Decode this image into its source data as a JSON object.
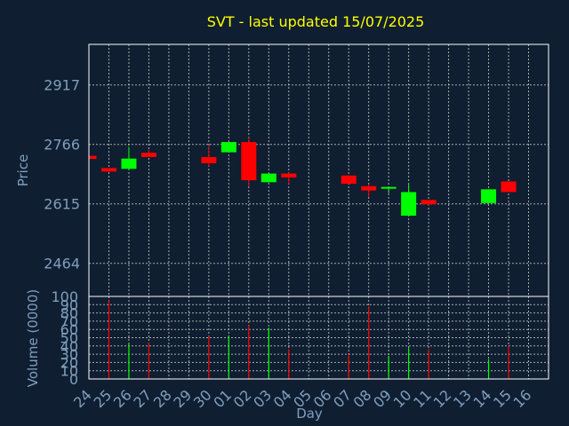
{
  "chart_data": {
    "type": "candlestick",
    "title": "SVT - last updated 15/07/2025",
    "xlabel": "Day",
    "price_panel": {
      "ylabel": "Price",
      "ylim": [
        2380,
        3020
      ],
      "yticks": [
        2464,
        2615,
        2766,
        2917
      ],
      "up_color": "#00ff00",
      "down_color": "#ff0000"
    },
    "volume_panel": {
      "ylabel": "Volume (0000)",
      "ylim": [
        0,
        100
      ],
      "yticks": [
        0,
        10,
        20,
        30,
        40,
        50,
        60,
        70,
        80,
        90,
        100
      ]
    },
    "x_ticks": [
      "24",
      "25",
      "26",
      "27",
      "28",
      "29",
      "30",
      "01",
      "02",
      "03",
      "04",
      "05",
      "06",
      "07",
      "08",
      "09",
      "10",
      "11",
      "12",
      "13",
      "14",
      "15",
      "16"
    ],
    "candles": [
      {
        "day": "24",
        "open": 2737,
        "close": 2729,
        "high": 2737,
        "low": 2729,
        "volume": 0
      },
      {
        "day": "25",
        "open": 2706,
        "close": 2697,
        "high": 2706,
        "low": 2697,
        "volume": 95
      },
      {
        "day": "26",
        "open": 2704,
        "close": 2730,
        "high": 2760,
        "low": 2700,
        "volume": 42
      },
      {
        "day": "27",
        "open": 2745,
        "close": 2734,
        "high": 2752,
        "low": 2734,
        "volume": 44
      },
      {
        "day": "30",
        "open": 2734,
        "close": 2718,
        "high": 2762,
        "low": 2710,
        "volume": 52
      },
      {
        "day": "01",
        "open": 2746,
        "close": 2772,
        "high": 2772,
        "low": 2746,
        "volume": 52
      },
      {
        "day": "02",
        "open": 2772,
        "close": 2675,
        "high": 2784,
        "low": 2660,
        "volume": 65
      },
      {
        "day": "03",
        "open": 2670,
        "close": 2692,
        "high": 2692,
        "low": 2670,
        "volume": 62
      },
      {
        "day": "04",
        "open": 2692,
        "close": 2682,
        "high": 2695,
        "low": 2665,
        "volume": 36
      },
      {
        "day": "07",
        "open": 2687,
        "close": 2666,
        "high": 2687,
        "low": 2666,
        "volume": 30
      },
      {
        "day": "08",
        "open": 2660,
        "close": 2649,
        "high": 2665,
        "low": 2632,
        "volume": 88
      },
      {
        "day": "09",
        "open": 2654,
        "close": 2658,
        "high": 2658,
        "low": 2642,
        "volume": 28
      },
      {
        "day": "10",
        "open": 2585,
        "close": 2645,
        "high": 2665,
        "low": 2585,
        "volume": 38
      },
      {
        "day": "11",
        "open": 2625,
        "close": 2614,
        "high": 2625,
        "low": 2610,
        "volume": 36
      },
      {
        "day": "14",
        "open": 2617,
        "close": 2652,
        "high": 2652,
        "low": 2617,
        "volume": 24
      },
      {
        "day": "15",
        "open": 2672,
        "close": 2645,
        "high": 2672,
        "low": 2645,
        "volume": 40
      }
    ]
  }
}
